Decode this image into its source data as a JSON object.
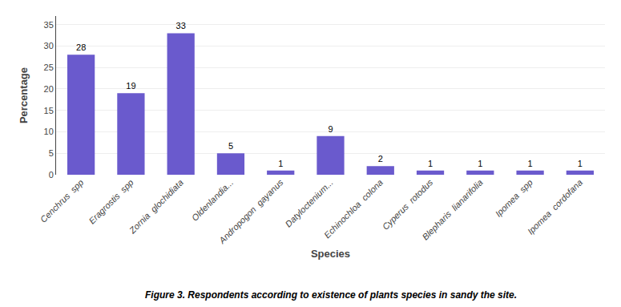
{
  "chart_data": {
    "type": "bar",
    "categories": [
      "Cenchrus  spp",
      "Eragrostis  spp",
      "Zornia  glochidiata",
      "Oldenlandia...",
      "Andropogon  gayanus",
      "Datyloctenium...",
      "Echinochloa  colona",
      "Cyperus  rotodus",
      "Blepharis  lianarifolia",
      "Ipomea  spp",
      "Ipomea  cordofana"
    ],
    "values": [
      28,
      19,
      33,
      5,
      1,
      9,
      2,
      1,
      1,
      1,
      1
    ],
    "color": "#6A5ACD",
    "xlabel": "Species",
    "ylabel": "Percentage",
    "ylim": [
      0,
      37
    ],
    "yticks": [
      0,
      5,
      10,
      15,
      20,
      25,
      30,
      35
    ],
    "grid": true,
    "data_labels": true,
    "annotations": [
      "Figure 3. Respondents according to existence of plants species in sandy the site."
    ]
  }
}
